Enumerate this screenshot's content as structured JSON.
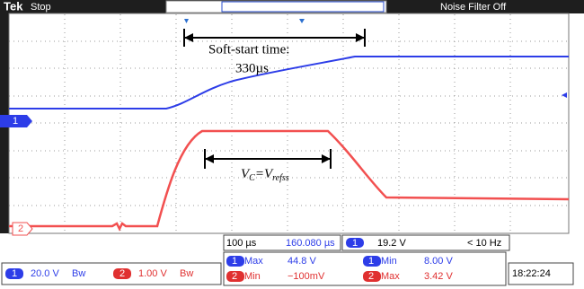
{
  "header": {
    "logo": "Tek",
    "status": "Stop",
    "filter": "Noise Filter Off"
  },
  "annotations": {
    "soft_start_label": "Soft-start time:",
    "soft_start_value": "330µs",
    "vc": [
      "V",
      "C",
      "=V",
      "refss"
    ]
  },
  "markers": {
    "ch1": "1",
    "ch2": "2"
  },
  "timebase": {
    "scale": "100 µs",
    "position": "160.080 µs"
  },
  "trigger": {
    "channel": "1",
    "level": "19.2 V",
    "frequency": "< 10 Hz"
  },
  "measurements": [
    {
      "channel": "1",
      "name": "Max",
      "value": "44.8 V"
    },
    {
      "channel": "1",
      "name": "Min",
      "value": "8.00 V"
    },
    {
      "channel": "2",
      "name": "Min",
      "value": "−100mV"
    },
    {
      "channel": "2",
      "name": "Max",
      "value": "3.42 V"
    }
  ],
  "channels": [
    {
      "channel": "1",
      "scale": "20.0 V",
      "bandwidth": "Bw"
    },
    {
      "channel": "2",
      "scale": "1.00 V",
      "bandwidth": "Bw"
    }
  ],
  "clock": "18:22:24"
}
